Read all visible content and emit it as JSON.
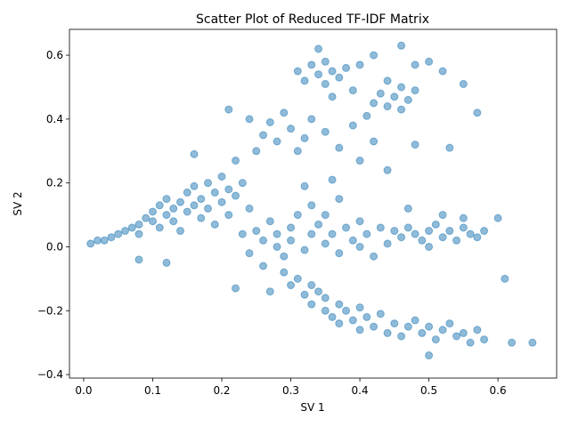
{
  "chart_data": {
    "type": "scatter",
    "title": "Scatter Plot of Reduced TF-IDF Matrix",
    "x_label": "SV 1",
    "y_label": "SV 2",
    "color": "#1f77b4",
    "xlim": [
      -0.0206,
      0.685
    ],
    "ylim": [
      -0.411,
      0.681
    ],
    "xticks": [
      {
        "value": 0,
        "label": "0.0"
      },
      0.1,
      0.2,
      0.3,
      0.4,
      0.5,
      0.6
    ],
    "yticks": [
      {
        "value": -0.4,
        "label": "−0.4"
      },
      {
        "value": -0.2,
        "label": "−0.2"
      },
      {
        "value": 0,
        "label": "0.0"
      },
      0.2,
      0.4,
      0.6
    ],
    "x": [
      0.01,
      0.02,
      0.03,
      0.04,
      0.05,
      0.06,
      0.07,
      0.08,
      0.08,
      0.09,
      0.1,
      0.1,
      0.11,
      0.11,
      0.12,
      0.12,
      0.13,
      0.13,
      0.14,
      0.14,
      0.15,
      0.15,
      0.16,
      0.16,
      0.17,
      0.17,
      0.18,
      0.18,
      0.19,
      0.19,
      0.2,
      0.2,
      0.21,
      0.21,
      0.22,
      0.23,
      0.24,
      0.16,
      0.12,
      0.08,
      0.25,
      0.26,
      0.27,
      0.28,
      0.28,
      0.29,
      0.3,
      0.3,
      0.31,
      0.32,
      0.33,
      0.33,
      0.34,
      0.35,
      0.35,
      0.36,
      0.37,
      0.37,
      0.38,
      0.39,
      0.4,
      0.4,
      0.41,
      0.42,
      0.43,
      0.24,
      0.26,
      0.32,
      0.36,
      0.23,
      0.45,
      0.46,
      0.47,
      0.48,
      0.49,
      0.5,
      0.51,
      0.52,
      0.53,
      0.54,
      0.55,
      0.56,
      0.57,
      0.58,
      0.47,
      0.52,
      0.55,
      0.44,
      0.5,
      0.6,
      0.29,
      0.3,
      0.31,
      0.32,
      0.33,
      0.33,
      0.34,
      0.35,
      0.35,
      0.36,
      0.37,
      0.37,
      0.38,
      0.39,
      0.4,
      0.4,
      0.41,
      0.42,
      0.43,
      0.44,
      0.45,
      0.46,
      0.47,
      0.48,
      0.49,
      0.5,
      0.51,
      0.52,
      0.53,
      0.54,
      0.55,
      0.56,
      0.57,
      0.58,
      0.62,
      0.65,
      0.61,
      0.27,
      0.22,
      0.5,
      0.31,
      0.32,
      0.33,
      0.34,
      0.35,
      0.35,
      0.36,
      0.37,
      0.38,
      0.34,
      0.42,
      0.43,
      0.44,
      0.45,
      0.46,
      0.46,
      0.47,
      0.48,
      0.44,
      0.46,
      0.4,
      0.42,
      0.48,
      0.5,
      0.52,
      0.55,
      0.57,
      0.39,
      0.41,
      0.36,
      0.21,
      0.24,
      0.26,
      0.27,
      0.28,
      0.29,
      0.3,
      0.31,
      0.32,
      0.33,
      0.35,
      0.37,
      0.39,
      0.4,
      0.42,
      0.44,
      0.25,
      0.22,
      0.48,
      0.53
    ],
    "y": [
      0.01,
      0.02,
      0.02,
      0.03,
      0.04,
      0.05,
      0.06,
      0.07,
      0.04,
      0.09,
      0.08,
      0.11,
      0.06,
      0.13,
      0.1,
      0.15,
      0.08,
      0.12,
      0.14,
      0.05,
      0.17,
      0.11,
      0.13,
      0.19,
      0.09,
      0.15,
      0.2,
      0.12,
      0.17,
      0.07,
      0.22,
      0.14,
      0.18,
      0.1,
      0.16,
      0.2,
      0.12,
      0.29,
      -0.05,
      -0.04,
      0.05,
      0.02,
      0.08,
      0.0,
      0.04,
      -0.03,
      0.06,
      0.02,
      0.1,
      -0.01,
      0.04,
      0.13,
      0.07,
      0.01,
      0.1,
      0.04,
      0.15,
      -0.02,
      0.06,
      0.02,
      0.08,
      0.0,
      0.04,
      -0.03,
      0.06,
      -0.02,
      -0.06,
      0.19,
      0.21,
      0.04,
      0.05,
      0.03,
      0.06,
      0.04,
      0.02,
      0.05,
      0.07,
      0.03,
      0.05,
      0.02,
      0.06,
      0.04,
      0.03,
      0.05,
      0.12,
      0.1,
      0.09,
      0.01,
      0.0,
      0.09,
      -0.08,
      -0.12,
      -0.1,
      -0.15,
      -0.12,
      -0.18,
      -0.14,
      -0.2,
      -0.16,
      -0.22,
      -0.18,
      -0.24,
      -0.2,
      -0.23,
      -0.19,
      -0.26,
      -0.22,
      -0.25,
      -0.21,
      -0.27,
      -0.24,
      -0.28,
      -0.25,
      -0.23,
      -0.27,
      -0.25,
      -0.29,
      -0.26,
      -0.24,
      -0.28,
      -0.27,
      -0.3,
      -0.26,
      -0.29,
      -0.3,
      -0.3,
      -0.1,
      -0.14,
      -0.13,
      -0.34,
      0.55,
      0.52,
      0.57,
      0.54,
      0.58,
      0.51,
      0.55,
      0.53,
      0.56,
      0.62,
      0.45,
      0.48,
      0.44,
      0.47,
      0.5,
      0.43,
      0.46,
      0.49,
      0.52,
      0.63,
      0.57,
      0.6,
      0.57,
      0.58,
      0.55,
      0.51,
      0.42,
      0.49,
      0.41,
      0.47,
      0.43,
      0.4,
      0.35,
      0.39,
      0.33,
      0.42,
      0.37,
      0.3,
      0.34,
      0.4,
      0.36,
      0.31,
      0.38,
      0.27,
      0.33,
      0.24,
      0.3,
      0.27,
      0.32,
      0.31
    ]
  }
}
